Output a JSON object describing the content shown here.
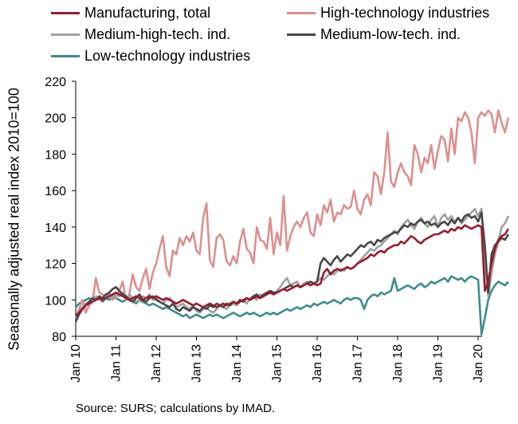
{
  "chart_data": {
    "type": "line",
    "ylabel": "Seasonally adjusted real index 2010=100",
    "ylim": [
      80,
      220
    ],
    "yticks": [
      "80",
      "100",
      "120",
      "140",
      "160",
      "180",
      "200",
      "220"
    ],
    "xticks": [
      "Jan 10",
      "Jan 11",
      "Jan 12",
      "Jan 13",
      "Jan 14",
      "Jan 15",
      "Jan 16",
      "Jan 17",
      "Jan 18",
      "Jan 19",
      "Jan 20"
    ],
    "x_start": "Jan 10",
    "x_end": "Oct 20",
    "frequency": "monthly",
    "grid": false,
    "legend_position": "top",
    "series": [
      {
        "name": "Manufacturing, total",
        "color": "#9c1a2e",
        "values": [
          91,
          93,
          95,
          97,
          98,
          99,
          100,
          101,
          100,
          101,
          102,
          103,
          104,
          103,
          102,
          101,
          100,
          101,
          102,
          101,
          100,
          101,
          102,
          101,
          102,
          101,
          100,
          101,
          100,
          99,
          98,
          99,
          100,
          99,
          98,
          97,
          98,
          97,
          96,
          97,
          98,
          97,
          96,
          97,
          98,
          97,
          98,
          99,
          98,
          99,
          100,
          101,
          100,
          101,
          102,
          101,
          102,
          103,
          104,
          103,
          104,
          105,
          106,
          105,
          106,
          107,
          108,
          107,
          108,
          109,
          108,
          109,
          108,
          109,
          115,
          117,
          114,
          116,
          117,
          116,
          117,
          118,
          117,
          118,
          120,
          121,
          122,
          123,
          125,
          124,
          126,
          127,
          126,
          128,
          129,
          130,
          130,
          132,
          131,
          133,
          135,
          134,
          132,
          131,
          133,
          134,
          135,
          136,
          136,
          137,
          138,
          137,
          139,
          138,
          140,
          139,
          141,
          140,
          139,
          140,
          141,
          140,
          105,
          110,
          120,
          128,
          133,
          135,
          136,
          139
        ]
      },
      {
        "name": "High-technology industries",
        "color": "#dc8f8f",
        "values": [
          90,
          95,
          100,
          93,
          97,
          99,
          112,
          104,
          103,
          101,
          104,
          100,
          102,
          105,
          110,
          100,
          103,
          114,
          107,
          105,
          112,
          117,
          106,
          115,
          120,
          128,
          135,
          118,
          113,
          127,
          125,
          134,
          130,
          135,
          132,
          137,
          127,
          125,
          145,
          153,
          122,
          118,
          134,
          136,
          133,
          121,
          119,
          124,
          120,
          132,
          139,
          128,
          126,
          120,
          140,
          133,
          132,
          128,
          145,
          125,
          137,
          130,
          157,
          127,
          135,
          140,
          143,
          140,
          145,
          148,
          137,
          135,
          147,
          141,
          152,
          148,
          155,
          143,
          148,
          147,
          152,
          150,
          151,
          160,
          150,
          147,
          155,
          158,
          152,
          170,
          168,
          158,
          170,
          192,
          165,
          162,
          170,
          175,
          170,
          168,
          163,
          185,
          180,
          170,
          178,
          175,
          185,
          172,
          182,
          190,
          188,
          176,
          194,
          180,
          200,
          198,
          203,
          200,
          192,
          175,
          200,
          203,
          201,
          204,
          202,
          192,
          204,
          197,
          192,
          200
        ]
      },
      {
        "name": "Medium-high-tech. ind.",
        "color": "#a0a0a0",
        "values": [
          90,
          94,
          96,
          98,
          99,
          100,
          102,
          100,
          101,
          102,
          103,
          101,
          103,
          102,
          104,
          100,
          103,
          101,
          99,
          100,
          102,
          101,
          103,
          100,
          101,
          99,
          98,
          100,
          101,
          99,
          96,
          97,
          98,
          96,
          95,
          97,
          94,
          93,
          95,
          96,
          94,
          93,
          95,
          97,
          96,
          95,
          97,
          98,
          97,
          99,
          100,
          98,
          101,
          102,
          100,
          103,
          102,
          104,
          105,
          103,
          105,
          107,
          110,
          112,
          108,
          109,
          110,
          107,
          109,
          110,
          108,
          109,
          110,
          112,
          111,
          113,
          115,
          114,
          116,
          117,
          116,
          118,
          117,
          118,
          120,
          122,
          124,
          126,
          128,
          127,
          129,
          130,
          132,
          134,
          136,
          138,
          136,
          140,
          142,
          144,
          141,
          139,
          143,
          145,
          142,
          140,
          144,
          146,
          140,
          145,
          147,
          144,
          146,
          143,
          145,
          142,
          144,
          146,
          148,
          150,
          146,
          150,
          120,
          102,
          115,
          125,
          132,
          140,
          142,
          146
        ]
      },
      {
        "name": "Medium-low-tech. ind.",
        "color": "#474747",
        "values": [
          88,
          92,
          95,
          97,
          99,
          101,
          100,
          102,
          101,
          103,
          104,
          106,
          107,
          105,
          103,
          102,
          100,
          99,
          101,
          103,
          100,
          99,
          101,
          102,
          100,
          99,
          98,
          97,
          96,
          98,
          95,
          94,
          96,
          95,
          94,
          96,
          95,
          94,
          96,
          95,
          97,
          96,
          98,
          97,
          96,
          98,
          97,
          99,
          98,
          100,
          99,
          101,
          100,
          102,
          103,
          101,
          103,
          104,
          105,
          104,
          104,
          105,
          106,
          107,
          108,
          107,
          108,
          107,
          108,
          109,
          110,
          109,
          110,
          120,
          123,
          121,
          119,
          122,
          124,
          121,
          123,
          125,
          124,
          126,
          128,
          130,
          129,
          131,
          132,
          130,
          133,
          132,
          134,
          135,
          136,
          137,
          137,
          139,
          141,
          140,
          142,
          141,
          143,
          144,
          142,
          143,
          141,
          142,
          140,
          142,
          143,
          141,
          144,
          142,
          145,
          143,
          146,
          147,
          145,
          146,
          143,
          148,
          130,
          104,
          125,
          130,
          132,
          134,
          133,
          136
        ]
      },
      {
        "name": "Low-technology industries",
        "color": "#3e8c8c",
        "values": [
          96,
          98,
          99,
          100,
          101,
          99,
          100,
          101,
          99,
          101,
          100,
          102,
          101,
          100,
          99,
          100,
          101,
          99,
          98,
          100,
          99,
          98,
          97,
          98,
          97,
          96,
          95,
          96,
          95,
          94,
          93,
          92,
          91,
          92,
          90,
          91,
          92,
          91,
          90,
          91,
          92,
          91,
          92,
          91,
          90,
          91,
          92,
          93,
          92,
          91,
          92,
          93,
          92,
          93,
          92,
          91,
          92,
          93,
          92,
          93,
          92,
          93,
          94,
          95,
          94,
          95,
          96,
          95,
          96,
          97,
          96,
          98,
          97,
          98,
          99,
          98,
          99,
          100,
          99,
          98,
          100,
          101,
          100,
          101,
          101,
          100,
          95,
          100,
          102,
          103,
          102,
          104,
          103,
          104,
          105,
          112,
          105,
          106,
          107,
          108,
          107,
          106,
          108,
          109,
          107,
          108,
          110,
          109,
          110,
          111,
          112,
          110,
          113,
          112,
          111,
          112,
          110,
          112,
          113,
          112,
          111,
          81,
          90,
          100,
          105,
          108,
          110,
          109,
          108,
          110
        ]
      }
    ]
  },
  "source_text": "Source: SURS; calculations by IMAD."
}
